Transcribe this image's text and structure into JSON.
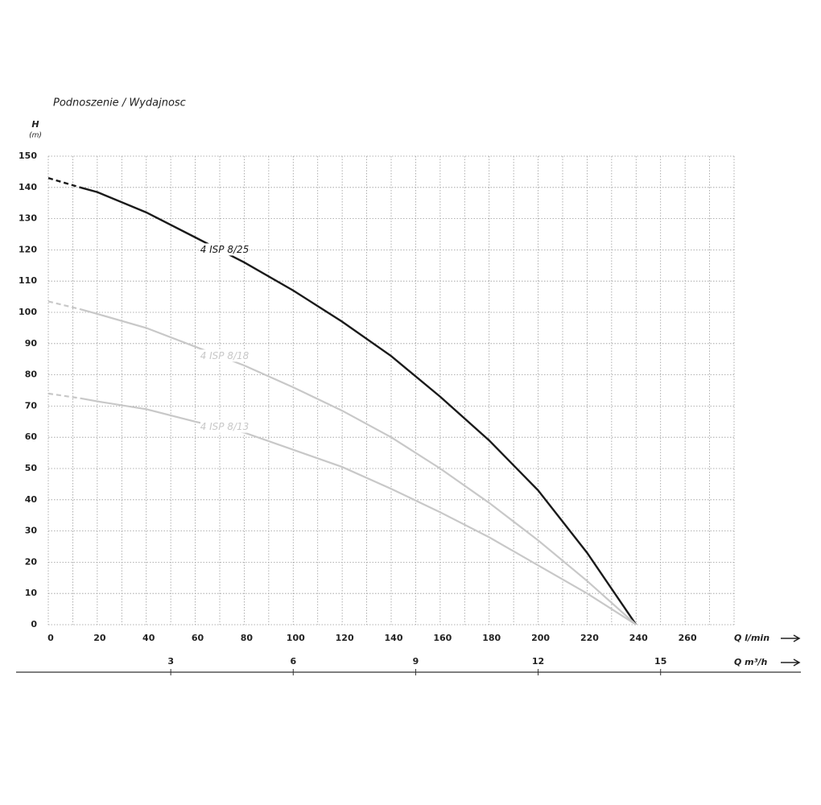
{
  "chart_data": {
    "type": "line",
    "title": "Podnoszenie / Wydajnosc",
    "y_label": "H",
    "y_unit": "(m)",
    "x_label": "Q l/min",
    "x2_label": "Q m³/h",
    "x": [
      0,
      13,
      20,
      40,
      60,
      80,
      100,
      120,
      140,
      160,
      180,
      200,
      220,
      240
    ],
    "series": [
      {
        "name": "4 ISP 8/25",
        "color": "#1a1a1a",
        "values": [
          143,
          140,
          138.5,
          132,
          124,
          116,
          107,
          97,
          86,
          73,
          59,
          43,
          23,
          0
        ]
      },
      {
        "name": "4 ISP 8/18",
        "color": "#c8c8c8",
        "values": [
          103.5,
          101,
          99.5,
          95,
          89,
          83,
          76,
          68.5,
          60,
          50,
          39,
          27,
          14,
          0
        ]
      },
      {
        "name": "4 ISP 8/13",
        "color": "#c8c8c8",
        "values": [
          74,
          72.5,
          71.5,
          69,
          65,
          61.5,
          56,
          50.5,
          43.5,
          36,
          28,
          19,
          10,
          0
        ]
      }
    ],
    "dash_first_segment": true,
    "xlim": [
      0,
      280
    ],
    "xticks": [
      0,
      20,
      40,
      60,
      80,
      100,
      120,
      140,
      160,
      180,
      200,
      220,
      240,
      260
    ],
    "xminorticks": [
      10,
      30,
      50,
      70,
      90,
      110,
      130,
      150,
      170,
      190,
      210,
      230,
      250,
      270,
      280
    ],
    "x2lim": [
      0,
      16.8
    ],
    "x2ticks": [
      3,
      6,
      9,
      12,
      15
    ],
    "ylim": [
      0,
      150
    ],
    "yticks": [
      0,
      10,
      20,
      30,
      40,
      50,
      60,
      70,
      80,
      90,
      100,
      110,
      120,
      130,
      140,
      150
    ],
    "grid": true
  }
}
